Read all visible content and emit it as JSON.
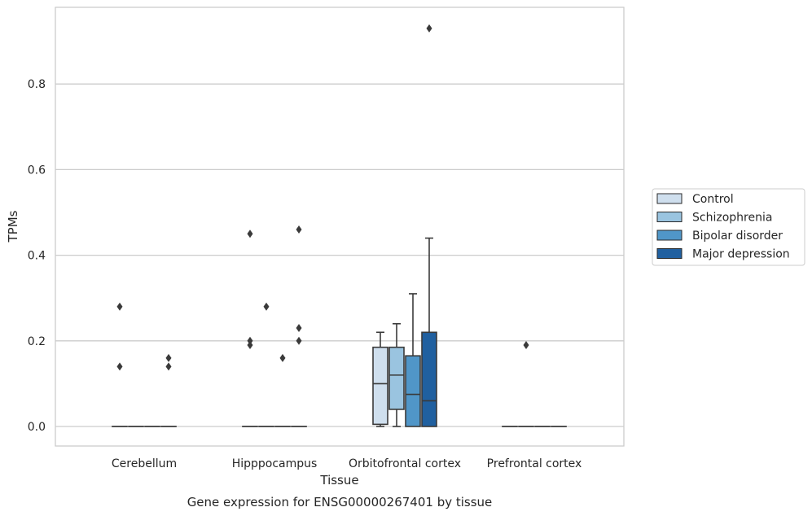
{
  "chart_data": {
    "type": "box",
    "title": "",
    "caption": "Gene expression for ENSG00000267401 by tissue",
    "xlabel": "Tissue",
    "ylabel": "TPMs",
    "ylim": [
      -0.045,
      0.98
    ],
    "yticks": [
      0.0,
      0.2,
      0.4,
      0.6,
      0.8
    ],
    "ytick_labels": [
      "0.0",
      "0.2",
      "0.4",
      "0.6",
      "0.8"
    ],
    "grid": "horizontal",
    "legend_position": "right",
    "categories": [
      "Cerebellum",
      "Hipppocampus",
      "Orbitofrontal cortex",
      "Prefrontal cortex"
    ],
    "series": [
      {
        "name": "Control",
        "color": "#cfdfee",
        "boxes": [
          {
            "min": 0,
            "q1": 0,
            "median": 0,
            "q3": 0,
            "max": 0,
            "outliers": [
              0.28,
              0.14
            ]
          },
          {
            "min": 0,
            "q1": 0,
            "median": 0,
            "q3": 0,
            "max": 0,
            "outliers": [
              0.45,
              0.2,
              0.19
            ]
          },
          {
            "min": 0.0,
            "q1": 0.005,
            "median": 0.1,
            "q3": 0.185,
            "max": 0.22,
            "outliers": []
          },
          {
            "min": 0,
            "q1": 0,
            "median": 0,
            "q3": 0,
            "max": 0,
            "outliers": []
          }
        ]
      },
      {
        "name": "Schizophrenia",
        "color": "#9ac4e0",
        "boxes": [
          {
            "min": 0,
            "q1": 0,
            "median": 0,
            "q3": 0,
            "max": 0,
            "outliers": []
          },
          {
            "min": 0,
            "q1": 0,
            "median": 0,
            "q3": 0,
            "max": 0,
            "outliers": [
              0.28
            ]
          },
          {
            "min": 0.0,
            "q1": 0.04,
            "median": 0.12,
            "q3": 0.185,
            "max": 0.24,
            "outliers": []
          },
          {
            "min": 0,
            "q1": 0,
            "median": 0,
            "q3": 0,
            "max": 0,
            "outliers": [
              0.19
            ]
          }
        ]
      },
      {
        "name": "Bipolar disorder",
        "color": "#5096c8",
        "boxes": [
          {
            "min": 0,
            "q1": 0,
            "median": 0,
            "q3": 0,
            "max": 0,
            "outliers": []
          },
          {
            "min": 0,
            "q1": 0,
            "median": 0,
            "q3": 0,
            "max": 0,
            "outliers": [
              0.16
            ]
          },
          {
            "min": 0.0,
            "q1": 0.0,
            "median": 0.075,
            "q3": 0.165,
            "max": 0.31,
            "outliers": []
          },
          {
            "min": 0,
            "q1": 0,
            "median": 0,
            "q3": 0,
            "max": 0,
            "outliers": []
          }
        ]
      },
      {
        "name": "Major depression",
        "color": "#2060a0",
        "boxes": [
          {
            "min": 0,
            "q1": 0,
            "median": 0,
            "q3": 0,
            "max": 0,
            "outliers": [
              0.16,
              0.14
            ]
          },
          {
            "min": 0,
            "q1": 0,
            "median": 0,
            "q3": 0,
            "max": 0,
            "outliers": [
              0.46,
              0.23,
              0.2
            ]
          },
          {
            "min": 0.0,
            "q1": 0.0,
            "median": 0.06,
            "q3": 0.22,
            "max": 0.44,
            "outliers": [
              0.93
            ]
          },
          {
            "min": 0,
            "q1": 0,
            "median": 0,
            "q3": 0,
            "max": 0,
            "outliers": []
          }
        ]
      }
    ]
  }
}
